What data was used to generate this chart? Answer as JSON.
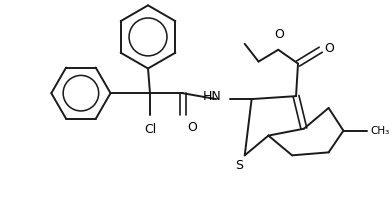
{
  "background": "#ffffff",
  "line_color": "#1a1a1a",
  "line_width": 1.4,
  "text_color": "#000000",
  "figsize": [
    3.92,
    2.11
  ],
  "dpi": 100,
  "xlim": [
    0,
    392
  ],
  "ylim": [
    0,
    211
  ]
}
